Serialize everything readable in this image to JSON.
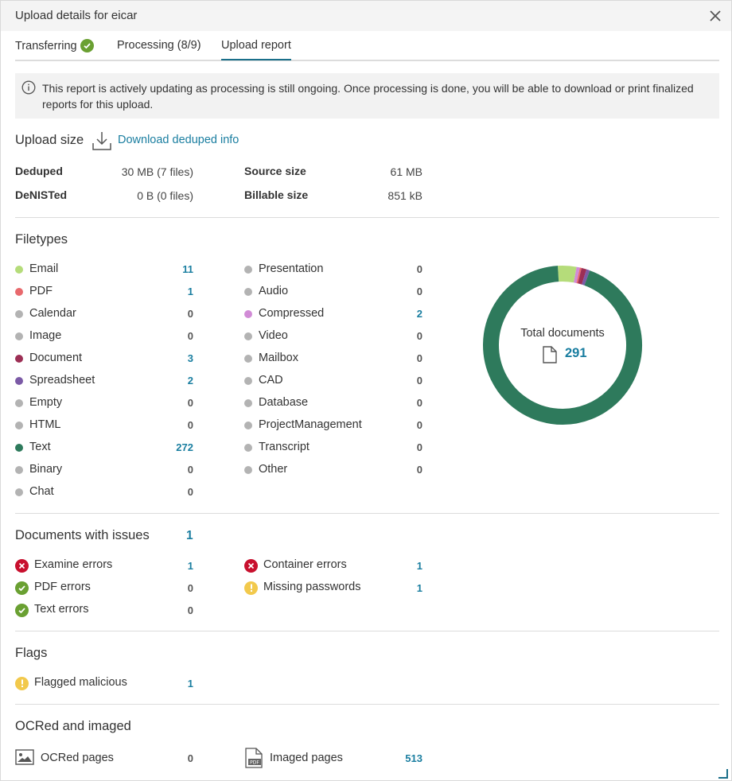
{
  "dialog": {
    "title": "Upload details for eicar"
  },
  "tabs": [
    {
      "label": "Transferring"
    },
    {
      "label": "Processing (8/9)"
    },
    {
      "label": "Upload report"
    }
  ],
  "info_text": "This report is actively updating as processing is still ongoing. Once processing is done, you will be able to download or print finalized reports for this upload.",
  "upload_size": {
    "title": "Upload size",
    "download_link": "Download deduped info",
    "deduped": {
      "label": "Deduped",
      "value": "30 MB (7 files)"
    },
    "denisted": {
      "label": "DeNISTed",
      "value": "0 B (0 files)"
    },
    "source": {
      "label": "Source size",
      "value": "61 MB"
    },
    "billable": {
      "label": "Billable size",
      "value": "851 kB"
    }
  },
  "filetypes": {
    "title": "Filetypes",
    "left": [
      {
        "label": "Email",
        "count": "11",
        "color": "#b5dc7a",
        "linked": true
      },
      {
        "label": "PDF",
        "count": "1",
        "color": "#e8696d",
        "linked": true
      },
      {
        "label": "Calendar",
        "count": "0",
        "color": "#b3b3b3",
        "linked": false
      },
      {
        "label": "Image",
        "count": "0",
        "color": "#b3b3b3",
        "linked": false
      },
      {
        "label": "Document",
        "count": "3",
        "color": "#9c2f55",
        "linked": true
      },
      {
        "label": "Spreadsheet",
        "count": "2",
        "color": "#7b5aa6",
        "linked": true
      },
      {
        "label": "Empty",
        "count": "0",
        "color": "#b3b3b3",
        "linked": false
      },
      {
        "label": "HTML",
        "count": "0",
        "color": "#b3b3b3",
        "linked": false
      },
      {
        "label": "Text",
        "count": "272",
        "color": "#2e7a5c",
        "linked": true
      },
      {
        "label": "Binary",
        "count": "0",
        "color": "#b3b3b3",
        "linked": false
      },
      {
        "label": "Chat",
        "count": "0",
        "color": "#b3b3b3",
        "linked": false
      }
    ],
    "right": [
      {
        "label": "Presentation",
        "count": "0",
        "color": "#b3b3b3",
        "linked": false
      },
      {
        "label": "Audio",
        "count": "0",
        "color": "#b3b3b3",
        "linked": false
      },
      {
        "label": "Compressed",
        "count": "2",
        "color": "#d18bd6",
        "linked": true
      },
      {
        "label": "Video",
        "count": "0",
        "color": "#b3b3b3",
        "linked": false
      },
      {
        "label": "Mailbox",
        "count": "0",
        "color": "#b3b3b3",
        "linked": false
      },
      {
        "label": "CAD",
        "count": "0",
        "color": "#b3b3b3",
        "linked": false
      },
      {
        "label": "Database",
        "count": "0",
        "color": "#b3b3b3",
        "linked": false
      },
      {
        "label": "ProjectManagement",
        "count": "0",
        "color": "#b3b3b3",
        "linked": false
      },
      {
        "label": "Transcript",
        "count": "0",
        "color": "#b3b3b3",
        "linked": false
      },
      {
        "label": "Other",
        "count": "0",
        "color": "#b3b3b3",
        "linked": false
      }
    ],
    "donut": {
      "label": "Total documents",
      "total": "291",
      "icon": "document-icon",
      "segments": [
        {
          "name": "Email",
          "value": 11,
          "color": "#b5dc7a"
        },
        {
          "name": "Compressed",
          "value": 2,
          "color": "#d18bd6"
        },
        {
          "name": "PDF",
          "value": 1,
          "color": "#e8696d"
        },
        {
          "name": "Document",
          "value": 3,
          "color": "#9c2f55"
        },
        {
          "name": "Spreadsheet",
          "value": 2,
          "color": "#7b5aa6"
        },
        {
          "name": "Text",
          "value": 272,
          "color": "#2e7a5c"
        }
      ]
    }
  },
  "issues": {
    "title": "Documents with issues",
    "count": "1",
    "left": [
      {
        "label": "Examine errors",
        "count": "1",
        "status": "error",
        "linked": true
      },
      {
        "label": "PDF errors",
        "count": "0",
        "status": "ok",
        "linked": false
      },
      {
        "label": "Text errors",
        "count": "0",
        "status": "ok",
        "linked": false
      }
    ],
    "right": [
      {
        "label": "Container errors",
        "count": "1",
        "status": "error",
        "linked": true
      },
      {
        "label": "Missing passwords",
        "count": "1",
        "status": "warning",
        "linked": true
      }
    ]
  },
  "flags": {
    "title": "Flags",
    "items": [
      {
        "label": "Flagged malicious",
        "count": "1",
        "status": "warning",
        "linked": true
      }
    ]
  },
  "ocr": {
    "title": "OCRed and imaged",
    "ocred": {
      "label": "OCRed pages",
      "count": "0",
      "icon": "image-icon"
    },
    "imaged": {
      "label": "Imaged pages",
      "count": "513",
      "icon": "pdf-file-icon",
      "icon_text": "PDF"
    }
  },
  "colors": {
    "accent": "#1a7ea0",
    "ok": "#6aa032",
    "error": "#c8102e",
    "warning": "#f2c94c"
  }
}
